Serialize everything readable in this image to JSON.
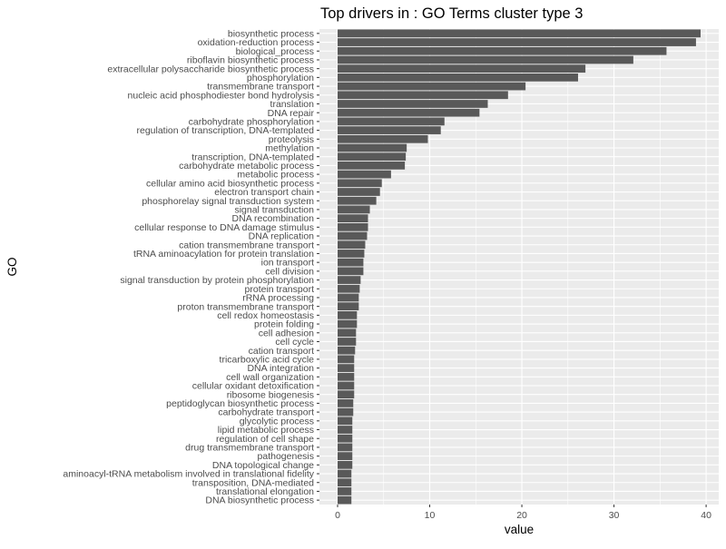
{
  "chart_data": {
    "type": "bar",
    "orientation": "horizontal",
    "title": "Top drivers in  : GO  Terms cluster type 3",
    "xlabel": "value",
    "ylabel": "GO",
    "xlim": [
      -1.97,
      41.37
    ],
    "xticks": [
      0,
      10,
      20,
      30,
      40
    ],
    "grid": true,
    "legend": "none",
    "colors": {
      "bar": "#595959",
      "panel": "#ebebeb",
      "grid": "#ffffff",
      "text": "#4d4d4d"
    },
    "categories": [
      "biosynthetic process",
      "oxidation-reduction process",
      "biological_process",
      "riboflavin biosynthetic process",
      "extracellular polysaccharide biosynthetic process",
      "phosphorylation",
      "transmembrane transport",
      "nucleic acid phosphodiester bond hydrolysis",
      "translation",
      "DNA repair",
      "carbohydrate phosphorylation",
      "regulation of transcription, DNA-templated",
      "proteolysis",
      "methylation",
      "transcription, DNA-templated",
      "carbohydrate metabolic process",
      "metabolic process",
      "cellular amino acid biosynthetic process",
      "electron transport chain",
      "phosphorelay signal transduction system",
      "signal transduction",
      "DNA recombination",
      "cellular response to DNA damage stimulus",
      "DNA replication",
      "cation transmembrane transport",
      "tRNA aminoacylation for protein translation",
      "ion transport",
      "cell division",
      "signal transduction by protein phosphorylation",
      "protein transport",
      "rRNA processing",
      "proton transmembrane transport",
      "cell redox homeostasis",
      "protein folding",
      "cell adhesion",
      "cell cycle",
      "cation transport",
      "tricarboxylic acid cycle",
      "DNA integration",
      "cell wall organization",
      "cellular oxidant detoxification",
      "ribosome biogenesis",
      "peptidoglycan biosynthetic process",
      "carbohydrate transport",
      "glycolytic process",
      "lipid metabolic process",
      "regulation of cell shape",
      "drug transmembrane transport",
      "pathogenesis",
      "DNA topological change",
      "aminoacyl-tRNA metabolism involved in translational fidelity",
      "transposition, DNA-mediated",
      "translational elongation",
      "DNA biosynthetic process"
    ],
    "values": [
      39.4,
      38.9,
      35.7,
      32.1,
      26.9,
      26.1,
      20.4,
      18.5,
      16.3,
      15.4,
      11.6,
      11.2,
      9.8,
      7.5,
      7.4,
      7.3,
      5.8,
      4.8,
      4.6,
      4.2,
      3.5,
      3.3,
      3.3,
      3.2,
      3.0,
      2.9,
      2.8,
      2.8,
      2.5,
      2.4,
      2.3,
      2.3,
      2.1,
      2.1,
      2.0,
      2.0,
      1.9,
      1.8,
      1.8,
      1.8,
      1.8,
      1.8,
      1.7,
      1.7,
      1.6,
      1.6,
      1.6,
      1.6,
      1.6,
      1.6,
      1.5,
      1.5,
      1.5,
      1.5
    ]
  }
}
